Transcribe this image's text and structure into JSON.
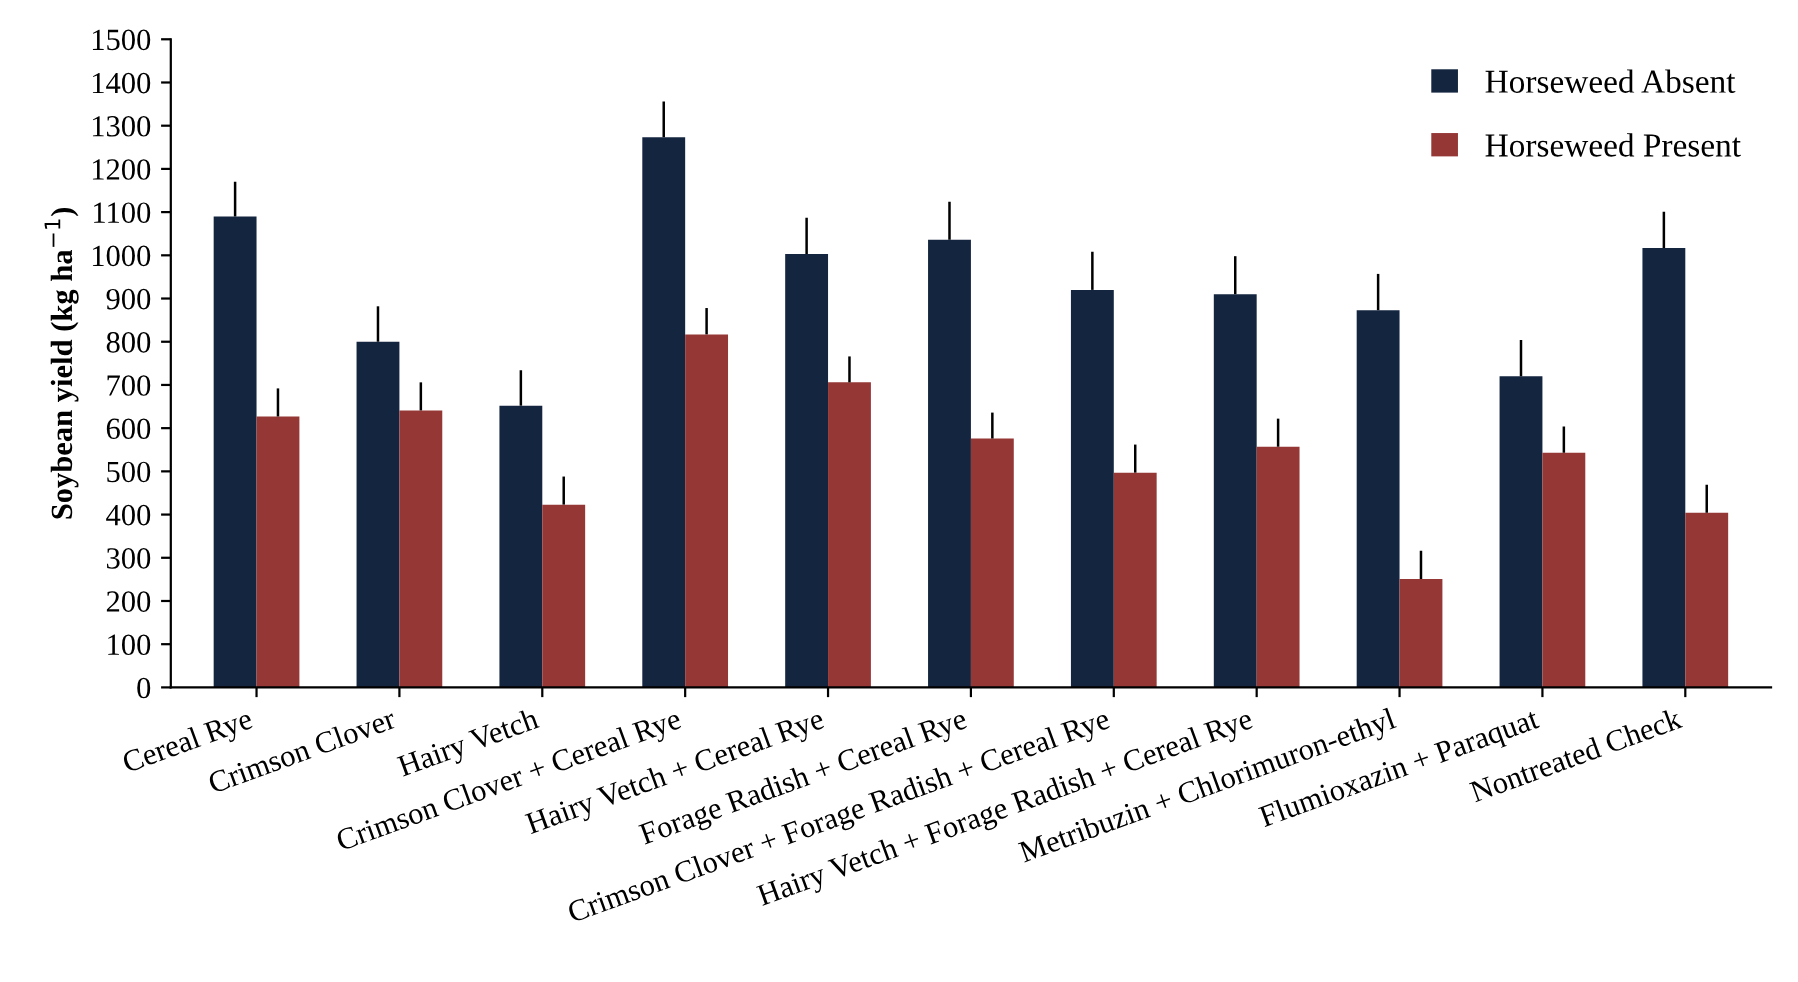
{
  "chart_data": {
    "type": "bar",
    "ylabel": "Soybean yield (kg ha$^{−1}$)",
    "categories": [
      "Cereal Rye",
      "Crimson Clover",
      "Hairy Vetch",
      "Crimson Clover + Cereal Rye",
      "Hairy Vetch + Cereal Rye",
      "Forage Radish + Cereal Rye",
      "Crimson Clover + Forage Radish + Cereal Rye",
      "Hairy Vetch + Forage Radish + Cereal Rye",
      "Metribuzin + Chlorimuron-ethyl",
      "Flumioxazin + Paraquat",
      "Nontreated Check"
    ],
    "series": [
      {
        "name": "Horseweed Absent",
        "color": "#14253f",
        "values": [
          1090,
          800,
          652,
          1273,
          1003,
          1036,
          920,
          910,
          873,
          720,
          1017
        ],
        "errors": [
          [
            1090,
            1170
          ],
          [
            800,
            882
          ],
          [
            652,
            734
          ],
          [
            1273,
            1356
          ],
          [
            1003,
            1087
          ],
          [
            1036,
            1124
          ],
          [
            920,
            1008
          ],
          [
            910,
            998
          ],
          [
            873,
            957
          ],
          [
            720,
            804
          ],
          [
            1017,
            1101
          ]
        ]
      },
      {
        "name": "Horseweed Present",
        "color": "#953735",
        "values": [
          627,
          641,
          423,
          817,
          706,
          576,
          497,
          557,
          251,
          543,
          404
        ],
        "errors": [
          [
            627,
            692
          ],
          [
            641,
            706
          ],
          [
            423,
            488
          ],
          [
            817,
            878
          ],
          [
            706,
            766
          ],
          [
            576,
            636
          ],
          [
            497,
            562
          ],
          [
            557,
            622
          ],
          [
            251,
            316
          ],
          [
            543,
            604
          ],
          [
            404,
            469
          ]
        ]
      }
    ],
    "ylim": [
      0,
      1500
    ],
    "yticks": [
      0,
      100,
      200,
      300,
      400,
      500,
      600,
      700,
      800,
      900,
      1000,
      1100,
      1200,
      1300,
      1400,
      1500
    ],
    "grid": false,
    "legend": "top right"
  }
}
